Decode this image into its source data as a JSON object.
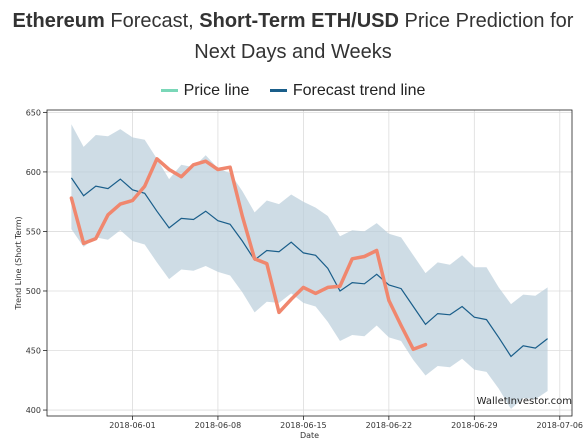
{
  "title": {
    "part1_bold": "Ethereum",
    "part2": " Forecast, ",
    "part3_bold": "Short-Term ETH/USD",
    "part4": " Price Prediction for",
    "line2": "Next Days and Weeks"
  },
  "watermark": "WalletInvestor.com",
  "chart_data": {
    "type": "line",
    "xlabel": "Date",
    "ylabel": "Trend Line (Short Term)",
    "ylim": [
      395,
      652
    ],
    "xlim": [
      "2018-05-25",
      "2018-07-07"
    ],
    "x_ticks": [
      "2018-06-01",
      "2018-06-08",
      "2018-06-15",
      "2018-06-22",
      "2018-06-29",
      "2018-07-06"
    ],
    "y_ticks": [
      400,
      450,
      500,
      550,
      600,
      650
    ],
    "grid": true,
    "legend_position": "top-center",
    "series": [
      {
        "name": "Price line",
        "color": "#f0876e",
        "legend_color": "#7ad7b8",
        "x": [
          "2018-05-27",
          "2018-05-28",
          "2018-05-29",
          "2018-05-30",
          "2018-05-31",
          "2018-06-01",
          "2018-06-02",
          "2018-06-03",
          "2018-06-04",
          "2018-06-05",
          "2018-06-06",
          "2018-06-07",
          "2018-06-08",
          "2018-06-09",
          "2018-06-10",
          "2018-06-11",
          "2018-06-12",
          "2018-06-13",
          "2018-06-14",
          "2018-06-15",
          "2018-06-16",
          "2018-06-17",
          "2018-06-18",
          "2018-06-19",
          "2018-06-20",
          "2018-06-21",
          "2018-06-22",
          "2018-06-23",
          "2018-06-24",
          "2018-06-25"
        ],
        "y": [
          578,
          540,
          544,
          564,
          573,
          576,
          588,
          611,
          602,
          596,
          606,
          609,
          602,
          604,
          563,
          527,
          523,
          482,
          493,
          503,
          498,
          503,
          504,
          527,
          529,
          534,
          492,
          471,
          451,
          455
        ]
      },
      {
        "name": "Forecast trend line",
        "color": "#1a5e8a",
        "x": [
          "2018-05-27",
          "2018-05-28",
          "2018-05-29",
          "2018-05-30",
          "2018-05-31",
          "2018-06-01",
          "2018-06-02",
          "2018-06-03",
          "2018-06-04",
          "2018-06-05",
          "2018-06-06",
          "2018-06-07",
          "2018-06-08",
          "2018-06-09",
          "2018-06-10",
          "2018-06-11",
          "2018-06-12",
          "2018-06-13",
          "2018-06-14",
          "2018-06-15",
          "2018-06-16",
          "2018-06-17",
          "2018-06-18",
          "2018-06-19",
          "2018-06-20",
          "2018-06-21",
          "2018-06-22",
          "2018-06-23",
          "2018-06-24",
          "2018-06-25",
          "2018-06-26",
          "2018-06-27",
          "2018-06-28",
          "2018-06-29",
          "2018-06-30",
          "2018-07-01",
          "2018-07-02",
          "2018-07-03",
          "2018-07-04",
          "2018-07-05"
        ],
        "y": [
          595,
          580,
          588,
          586,
          594,
          585,
          582,
          567,
          553,
          561,
          560,
          567,
          559,
          556,
          542,
          526,
          534,
          533,
          541,
          532,
          530,
          519,
          500,
          507,
          506,
          514,
          505,
          502,
          487,
          472,
          481,
          480,
          487,
          478,
          476,
          461,
          445,
          454,
          452,
          460
        ]
      }
    ],
    "band": {
      "color": "#b9cdda",
      "x": [
        "2018-05-27",
        "2018-05-28",
        "2018-05-29",
        "2018-05-30",
        "2018-05-31",
        "2018-06-01",
        "2018-06-02",
        "2018-06-03",
        "2018-06-04",
        "2018-06-05",
        "2018-06-06",
        "2018-06-07",
        "2018-06-08",
        "2018-06-09",
        "2018-06-10",
        "2018-06-11",
        "2018-06-12",
        "2018-06-13",
        "2018-06-14",
        "2018-06-15",
        "2018-06-16",
        "2018-06-17",
        "2018-06-18",
        "2018-06-19",
        "2018-06-20",
        "2018-06-21",
        "2018-06-22",
        "2018-06-23",
        "2018-06-24",
        "2018-06-25",
        "2018-06-26",
        "2018-06-27",
        "2018-06-28",
        "2018-06-29",
        "2018-06-30",
        "2018-07-01",
        "2018-07-02",
        "2018-07-03",
        "2018-07-04",
        "2018-07-05"
      ],
      "upper": [
        640,
        621,
        631,
        630,
        636,
        629,
        627,
        611,
        594,
        606,
        604,
        614,
        603,
        599,
        584,
        566,
        576,
        573,
        581,
        575,
        570,
        563,
        546,
        551,
        550,
        557,
        548,
        545,
        530,
        515,
        524,
        522,
        530,
        520,
        520,
        503,
        489,
        497,
        496,
        503
      ],
      "lower": [
        552,
        537,
        545,
        543,
        551,
        542,
        539,
        524,
        510,
        518,
        517,
        521,
        516,
        513,
        499,
        482,
        491,
        490,
        498,
        490,
        487,
        474,
        458,
        463,
        462,
        471,
        461,
        458,
        442,
        429,
        437,
        436,
        443,
        434,
        432,
        418,
        401,
        410,
        409,
        416
      ]
    }
  }
}
